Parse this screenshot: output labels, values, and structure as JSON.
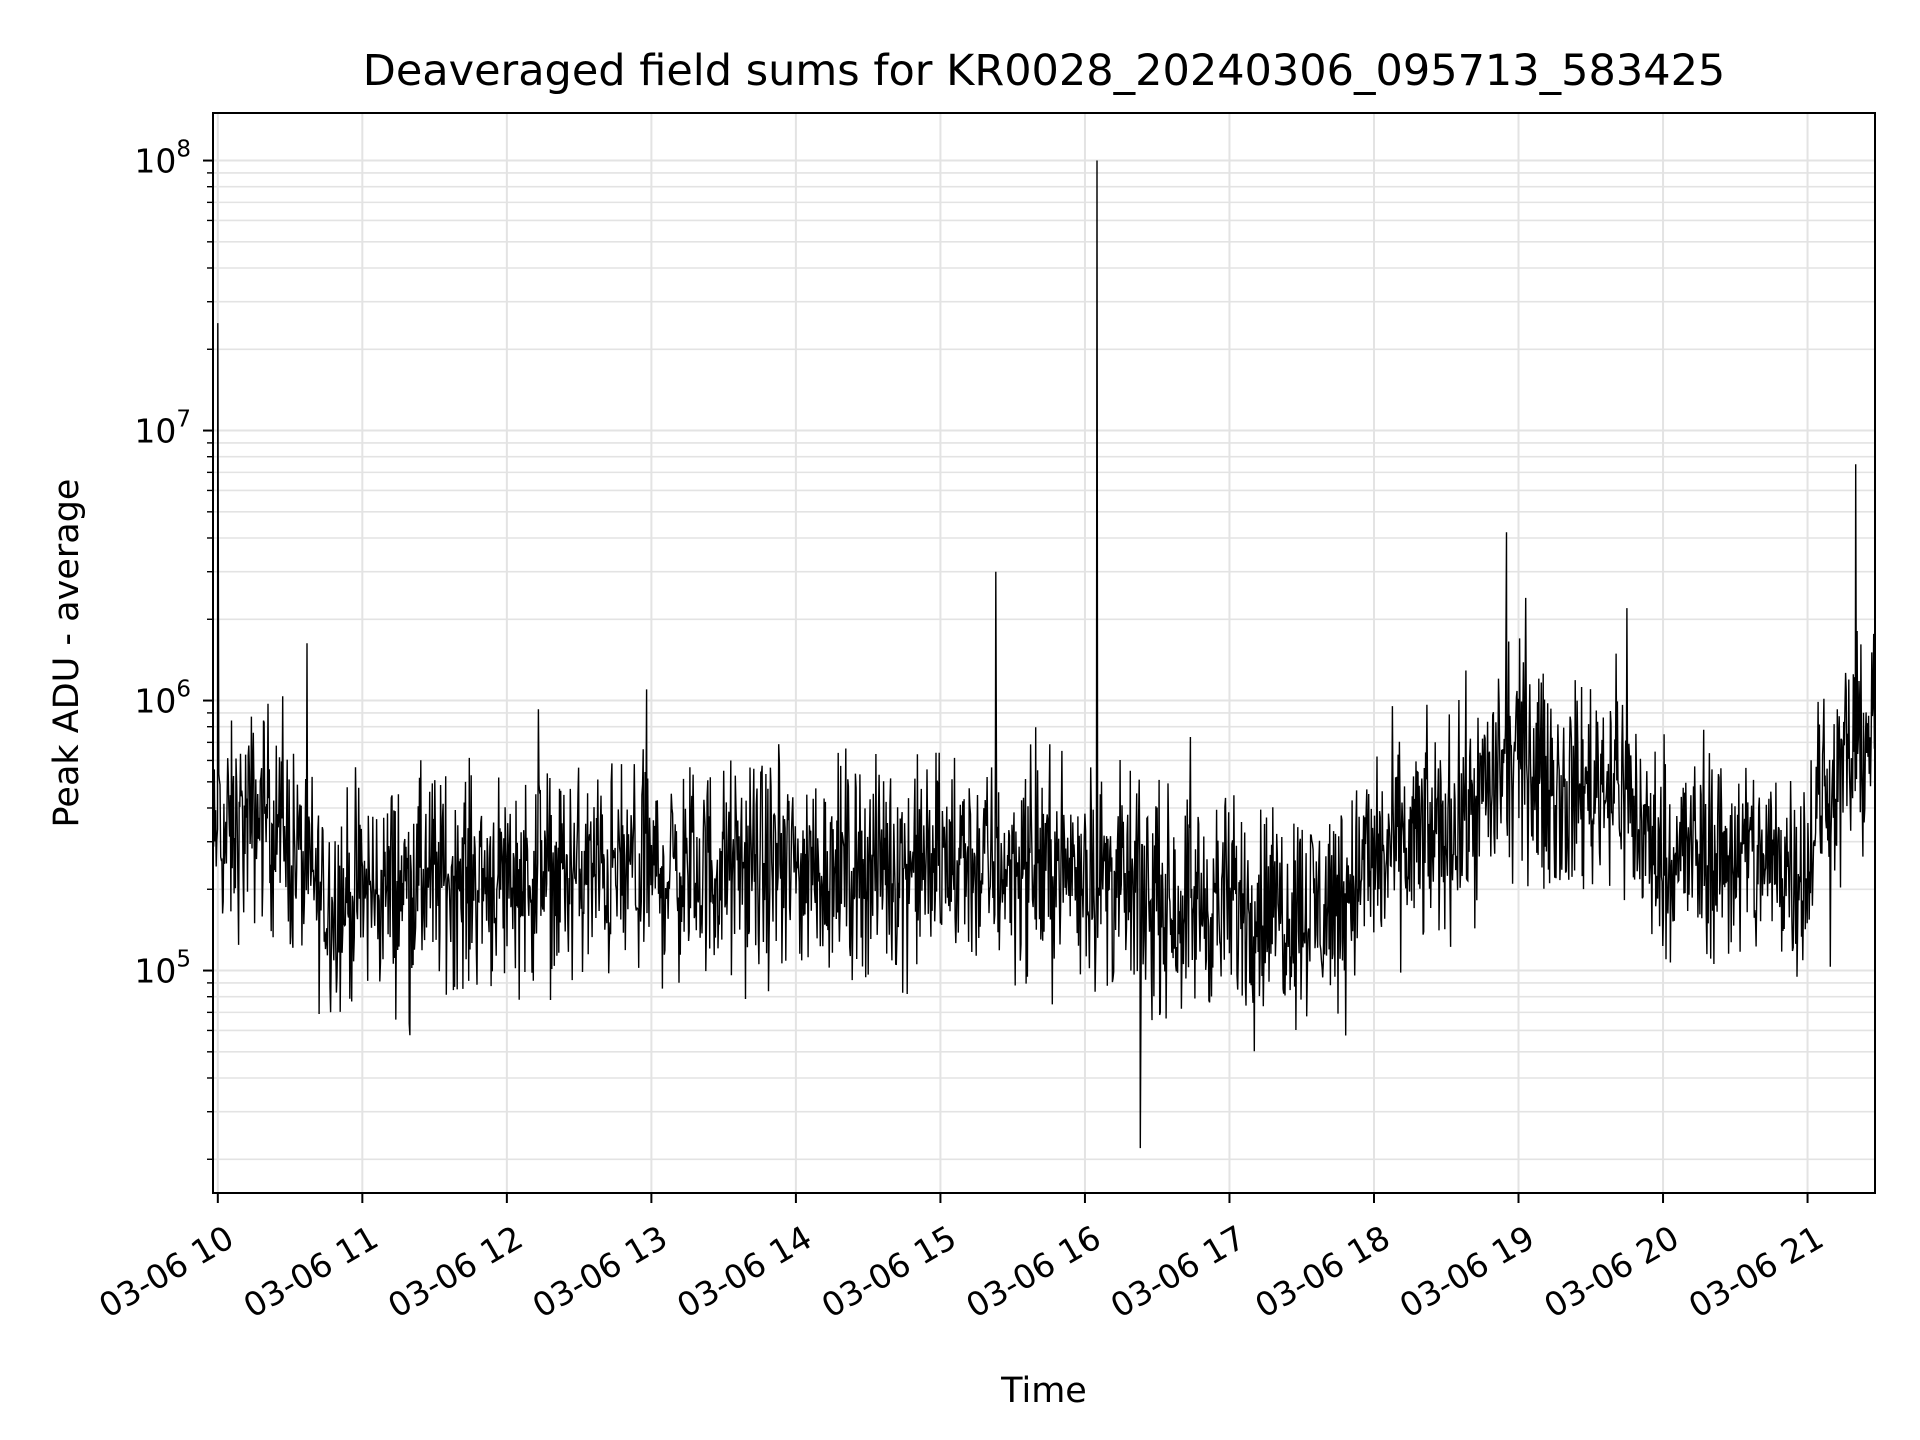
{
  "chart_data": {
    "type": "line",
    "title": "Deaveraged field sums for KR0028_20240306_095713_583425",
    "xlabel": "Time",
    "ylabel": "Peak ADU - average",
    "x_tick_labels": [
      "03-06 10",
      "03-06 11",
      "03-06 12",
      "03-06 13",
      "03-06 14",
      "03-06 15",
      "03-06 16",
      "03-06 17",
      "03-06 18",
      "03-06 19",
      "03-06 20",
      "03-06 21"
    ],
    "y_tick_labels": [
      {
        "base": "10",
        "exp": "5",
        "value": 100000
      },
      {
        "base": "10",
        "exp": "6",
        "value": 1000000
      },
      {
        "base": "10",
        "exp": "7",
        "value": 10000000
      },
      {
        "base": "10",
        "exp": "8",
        "value": 100000000
      }
    ],
    "yscale": "log",
    "xlim": [
      "2024-03-06 09:58",
      "2024-03-06 21:28"
    ],
    "ylim": [
      15000,
      150000000
    ],
    "grid": true,
    "line_color": "#000000",
    "series": [
      {
        "envelope": [
          [
            "2024-03-06 09:58",
            280000
          ],
          [
            "2024-03-06 10:20",
            400000
          ],
          [
            "2024-03-06 10:45",
            180000
          ],
          [
            "2024-03-06 11:30",
            220000
          ],
          [
            "2024-03-06 13:00",
            230000
          ],
          [
            "2024-03-06 15:00",
            250000
          ],
          [
            "2024-03-06 16:00",
            240000
          ],
          [
            "2024-03-06 16:30",
            180000
          ],
          [
            "2024-03-06 17:40",
            170000
          ],
          [
            "2024-03-06 18:00",
            260000
          ],
          [
            "2024-03-06 18:30",
            330000
          ],
          [
            "2024-03-06 19:00",
            620000
          ],
          [
            "2024-03-06 19:20",
            450000
          ],
          [
            "2024-03-06 19:40",
            550000
          ],
          [
            "2024-03-06 19:55",
            280000
          ],
          [
            "2024-03-06 21:00",
            250000
          ],
          [
            "2024-03-06 21:05",
            420000
          ],
          [
            "2024-03-06 21:28",
            850000
          ]
        ],
        "spikes": [
          [
            "2024-03-06 10:00",
            25000000
          ],
          [
            "2024-03-06 12:58",
            1100000
          ],
          [
            "2024-03-06 15:23",
            3000000
          ],
          [
            "2024-03-06 16:05",
            100000000
          ],
          [
            "2024-03-06 16:23",
            22000
          ],
          [
            "2024-03-06 18:55",
            4200000
          ],
          [
            "2024-03-06 19:03",
            2400000
          ],
          [
            "2024-03-06 19:45",
            2200000
          ],
          [
            "2024-03-06 21:20",
            7500000
          ]
        ]
      }
    ]
  }
}
